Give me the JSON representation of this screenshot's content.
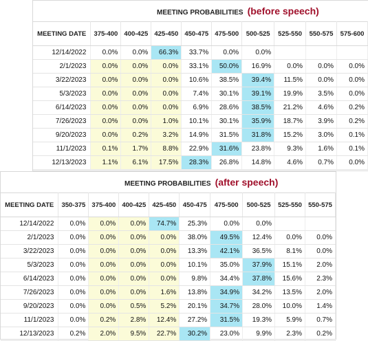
{
  "before": {
    "title": "MEETING PROBABILITIES",
    "tag": "(before speech)",
    "headers": [
      "MEETING DATE",
      "375-400",
      "400-425",
      "425-450",
      "450-475",
      "475-500",
      "500-525",
      "525-550",
      "550-575",
      "575-600"
    ],
    "rows": [
      {
        "date": "12/14/2022",
        "cells": [
          "0.0%",
          "0.0%",
          "66.3%",
          "33.7%",
          "0.0%",
          "0.0%",
          "",
          "",
          ""
        ],
        "hl": [
          0,
          0,
          2,
          0,
          0,
          0,
          0,
          0,
          0
        ]
      },
      {
        "date": "2/1/2023",
        "cells": [
          "0.0%",
          "0.0%",
          "0.0%",
          "33.1%",
          "50.0%",
          "16.9%",
          "0.0%",
          "0.0%",
          "0.0%"
        ],
        "hl": [
          1,
          1,
          1,
          0,
          2,
          0,
          0,
          0,
          0
        ]
      },
      {
        "date": "3/22/2023",
        "cells": [
          "0.0%",
          "0.0%",
          "0.0%",
          "10.6%",
          "38.5%",
          "39.4%",
          "11.5%",
          "0.0%",
          "0.0%"
        ],
        "hl": [
          1,
          1,
          1,
          0,
          0,
          2,
          0,
          0,
          0
        ]
      },
      {
        "date": "5/3/2023",
        "cells": [
          "0.0%",
          "0.0%",
          "0.0%",
          "7.4%",
          "30.1%",
          "39.1%",
          "19.9%",
          "3.5%",
          "0.0%"
        ],
        "hl": [
          1,
          1,
          1,
          0,
          0,
          2,
          0,
          0,
          0
        ]
      },
      {
        "date": "6/14/2023",
        "cells": [
          "0.0%",
          "0.0%",
          "0.0%",
          "6.9%",
          "28.6%",
          "38.5%",
          "21.2%",
          "4.6%",
          "0.2%"
        ],
        "hl": [
          1,
          1,
          1,
          0,
          0,
          2,
          0,
          0,
          0
        ]
      },
      {
        "date": "7/26/2023",
        "cells": [
          "0.0%",
          "0.0%",
          "1.0%",
          "10.1%",
          "30.1%",
          "35.9%",
          "18.7%",
          "3.9%",
          "0.2%"
        ],
        "hl": [
          1,
          1,
          1,
          0,
          0,
          2,
          0,
          0,
          0
        ]
      },
      {
        "date": "9/20/2023",
        "cells": [
          "0.0%",
          "0.2%",
          "3.2%",
          "14.9%",
          "31.5%",
          "31.8%",
          "15.2%",
          "3.0%",
          "0.1%"
        ],
        "hl": [
          1,
          1,
          1,
          0,
          0,
          2,
          0,
          0,
          0
        ]
      },
      {
        "date": "11/1/2023",
        "cells": [
          "0.1%",
          "1.7%",
          "8.8%",
          "22.9%",
          "31.6%",
          "23.8%",
          "9.3%",
          "1.6%",
          "0.1%"
        ],
        "hl": [
          1,
          1,
          1,
          0,
          2,
          0,
          0,
          0,
          0
        ]
      },
      {
        "date": "12/13/2023",
        "cells": [
          "1.1%",
          "6.1%",
          "17.5%",
          "28.3%",
          "26.8%",
          "14.8%",
          "4.6%",
          "0.7%",
          "0.0%"
        ],
        "hl": [
          1,
          1,
          1,
          2,
          0,
          0,
          0,
          0,
          0
        ]
      }
    ]
  },
  "after": {
    "title": "MEETING PROBABILITIES",
    "tag": "(after speech)",
    "headers": [
      "MEETING DATE",
      "350-375",
      "375-400",
      "400-425",
      "425-450",
      "450-475",
      "475-500",
      "500-525",
      "525-550",
      "550-575"
    ],
    "rows": [
      {
        "date": "12/14/2022",
        "cells": [
          "0.0%",
          "0.0%",
          "0.0%",
          "74.7%",
          "25.3%",
          "0.0%",
          "0.0%",
          "",
          ""
        ],
        "hl": [
          0,
          1,
          1,
          2,
          0,
          0,
          0,
          0,
          0
        ]
      },
      {
        "date": "2/1/2023",
        "cells": [
          "0.0%",
          "0.0%",
          "0.0%",
          "0.0%",
          "38.0%",
          "49.5%",
          "12.4%",
          "0.0%",
          "0.0%"
        ],
        "hl": [
          0,
          1,
          1,
          1,
          0,
          2,
          0,
          0,
          0
        ]
      },
      {
        "date": "3/22/2023",
        "cells": [
          "0.0%",
          "0.0%",
          "0.0%",
          "0.0%",
          "13.3%",
          "42.1%",
          "36.5%",
          "8.1%",
          "0.0%"
        ],
        "hl": [
          0,
          1,
          1,
          1,
          0,
          2,
          0,
          0,
          0
        ]
      },
      {
        "date": "5/3/2023",
        "cells": [
          "0.0%",
          "0.0%",
          "0.0%",
          "0.0%",
          "10.1%",
          "35.0%",
          "37.9%",
          "15.1%",
          "2.0%"
        ],
        "hl": [
          0,
          1,
          1,
          1,
          0,
          0,
          2,
          0,
          0
        ]
      },
      {
        "date": "6/14/2023",
        "cells": [
          "0.0%",
          "0.0%",
          "0.0%",
          "0.0%",
          "9.8%",
          "34.4%",
          "37.8%",
          "15.6%",
          "2.3%"
        ],
        "hl": [
          0,
          1,
          1,
          1,
          0,
          0,
          2,
          0,
          0
        ]
      },
      {
        "date": "7/26/2023",
        "cells": [
          "0.0%",
          "0.0%",
          "0.0%",
          "1.6%",
          "13.8%",
          "34.9%",
          "34.2%",
          "13.5%",
          "2.0%"
        ],
        "hl": [
          0,
          1,
          1,
          1,
          0,
          2,
          0,
          0,
          0
        ]
      },
      {
        "date": "9/20/2023",
        "cells": [
          "0.0%",
          "0.0%",
          "0.5%",
          "5.2%",
          "20.1%",
          "34.7%",
          "28.0%",
          "10.0%",
          "1.4%"
        ],
        "hl": [
          0,
          1,
          1,
          1,
          0,
          2,
          0,
          0,
          0
        ]
      },
      {
        "date": "11/1/2023",
        "cells": [
          "0.0%",
          "0.2%",
          "2.8%",
          "12.4%",
          "27.2%",
          "31.5%",
          "19.3%",
          "5.9%",
          "0.7%"
        ],
        "hl": [
          0,
          1,
          1,
          1,
          0,
          2,
          0,
          0,
          0
        ]
      },
      {
        "date": "12/13/2023",
        "cells": [
          "0.2%",
          "2.0%",
          "9.5%",
          "22.7%",
          "30.2%",
          "23.0%",
          "9.9%",
          "2.3%",
          "0.2%"
        ],
        "hl": [
          0,
          1,
          1,
          1,
          2,
          0,
          0,
          0,
          0
        ]
      }
    ]
  }
}
